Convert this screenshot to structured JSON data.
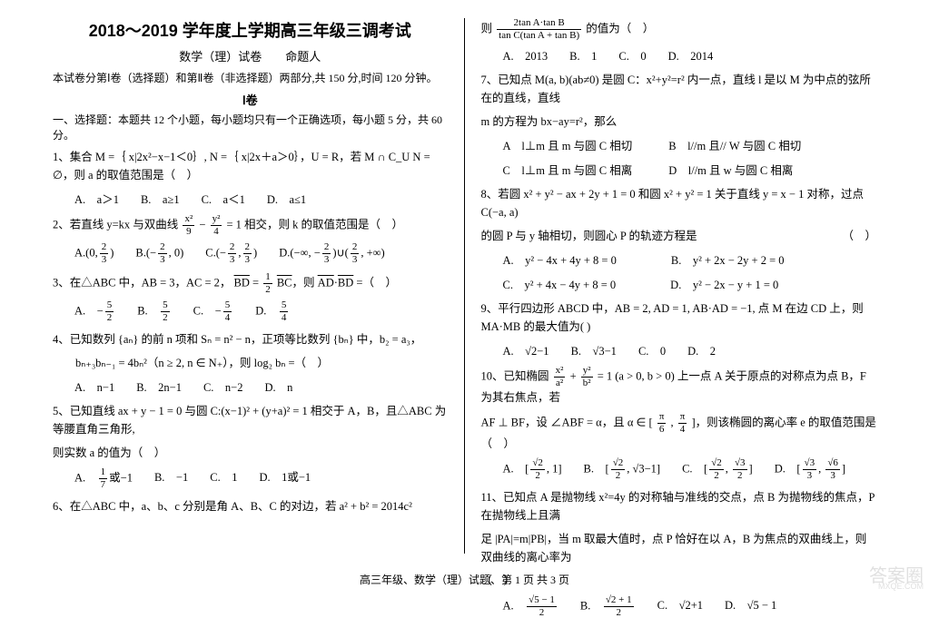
{
  "header": {
    "title": "2018～2019 学年度上学期高三年级三调考试",
    "subtitle_left": "数学（理）试卷",
    "subtitle_right": "命题人",
    "intro": "本试卷分第Ⅰ卷（选择题）和第Ⅱ卷（非选择题）两部分,共 150 分,时间 120 分钟。",
    "section1_label": "Ⅰ卷",
    "section1_desc": "一、选择题：本题共 12 个小题，每小题均只有一个正确选项，每小题 5 分，共 60 分。"
  },
  "left": {
    "q1": "1、集合 M =｛ x|2x²−x−1＜0｝, N =｛ x|2x＋a＞0｝，U = R，若 M ∩ C_U N = ∅，则 a 的取值范围是（　）",
    "q1_opts": {
      "a": "A.　a＞1",
      "b": "B.　a≥1",
      "c": "C.　a＜1",
      "d": "D.　a≤1"
    },
    "q2_pre": "2、若直线 y=kx 与双曲线",
    "q2_frac_l_num": "x²",
    "q2_frac_l_den": "9",
    "q2_frac_r_num": "y²",
    "q2_frac_r_den": "4",
    "q2_post": "= 1 相交，则 k 的取值范围是（　）",
    "q2_optA_pre": "A.",
    "q2_optA_l": "0,",
    "q2_optA_r_num": "2",
    "q2_optA_r_den": "3",
    "q2_optB_pre": "B.",
    "q2_optB_l_num": "2",
    "q2_optB_l_den": "3",
    "q2_optB_r": ", 0",
    "q2_optC_pre": "C.",
    "q2_optC_l_num": "2",
    "q2_optC_l_den": "3",
    "q2_optC_m": ",",
    "q2_optC_r_num": "2",
    "q2_optC_r_den": "3",
    "q2_optD_pre": "D.",
    "q2_optD_l": "−∞, −",
    "q2_optD_m_num": "2",
    "q2_optD_m_den": "3",
    "q2_optD_mid": "∪",
    "q2_optD_r_num": "2",
    "q2_optD_r_den": "3",
    "q2_optD_end": ", +∞",
    "q3_pre": "3、在△ABC 中，AB = 3，AC = 2，",
    "q3_bd": "BD",
    "q3_eq": " = ",
    "q3_half_num": "1",
    "q3_half_den": "2",
    "q3_bc": "BC",
    "q3_post": "，则",
    "q3_ad": "AD",
    "q3_dot": "·",
    "q3_bd2": "BD",
    "q3_end": " =（　）",
    "q3_opts": {
      "a_pre": "A.　−",
      "a_num": "5",
      "a_den": "2",
      "b_pre": "B.　",
      "b_num": "5",
      "b_den": "2",
      "c_pre": "C.　−",
      "c_num": "5",
      "c_den": "4",
      "d_pre": "D.　",
      "d_num": "5",
      "d_den": "4"
    },
    "q4_line1": "4、已知数列 {aₙ} 的前 n 项和 Sₙ = n² − n，正项等比数列 {bₙ} 中，b₂ = a₃，",
    "q4_line2": "　　bₙ₊₃bₙ₋₁ = 4bₙ²（n ≥ 2, n ∈ N₊），则 log₂ bₙ =（　）",
    "q4_opts": {
      "a": "A.　n−1",
      "b": "B.　2n−1",
      "c": "C.　n−2",
      "d": "D.　n"
    },
    "q5_line1": "5、已知直线 ax + y − 1 = 0 与圆 C:(x−1)² + (y+a)² = 1 相交于 A，B，且△ABC 为等腰直角三角形,",
    "q5_line2": "则实数 a 的值为（　）",
    "q5_opts": {
      "a_pre": "A.　",
      "a_num": "1",
      "a_den": "7",
      "a_post": "或−1",
      "b": "B.　−1",
      "c": "C.　1",
      "d": "D.　1或−1"
    },
    "q6": "6、在△ABC 中，a、b、c 分别是角 A、B、C 的对边，若 a² + b² = 2014c²"
  },
  "right": {
    "q6b_pre": "则",
    "q6b_top": "2tan A·tan B",
    "q6b_bot": "tan C(tan A + tan B)",
    "q6b_post": "的值为（　）",
    "q6b_opts": {
      "a": "A.　2013",
      "b": "B.　1",
      "c": "C.　0",
      "d": "D.　2014"
    },
    "q7_l1": "7、已知点 M(a, b)(ab≠0) 是圆 C：x²+y²=r² 内一点，直线 l 是以 M 为中点的弦所在的直线，直线",
    "q7_l2": "m 的方程为 bx−ay=r²，那么",
    "q7_opts": {
      "a": "A　l⊥m 且 m 与圆 C 相切",
      "b": "B　l//m 且// W 与圆 C 相切",
      "c": "C　l⊥m 且 m 与圆 C 相离",
      "d": "D　l//m 且 w 与圆 C 相离"
    },
    "q8_l1": "8、若圆 x² + y² − ax + 2y + 1 = 0 和圆 x² + y² = 1 关于直线 y = x − 1 对称，过点 C(−a, a)",
    "q8_l2": "的圆 P 与 y 轴相切，则圆心 P 的轨迹方程是",
    "q8_paren": "（　）",
    "q8_opts": {
      "a": "A.　y² − 4x + 4y + 8 = 0",
      "b": "B.　y² + 2x − 2y + 2 = 0",
      "c": "C.　y² + 4x − 4y + 8 = 0",
      "d": "D.　y² − 2x − y + 1 = 0"
    },
    "q9": "9、平行四边形 ABCD 中，AB = 2, AD = 1, AB·AD = −1, 点 M 在边 CD 上，则 MA·MB 的最大值为( )",
    "q9_opts": {
      "a": "A.　√2−1",
      "b": "B.　√3−1",
      "c": "C.　0",
      "d": "D.　2"
    },
    "q10_pre": "10、已知椭圆",
    "q10_fl_num": "x²",
    "q10_fl_den": "a²",
    "q10_plus": " + ",
    "q10_fr_num": "y²",
    "q10_fr_den": "b²",
    "q10_post": " = 1 (a > 0, b > 0) 上一点 A 关于原点的对称点为点 B，F 为其右焦点，若",
    "q10_l2_pre": "AF ⊥ BF，设 ∠ABF = α，且 α ∈ [",
    "q10_l2_f1_num": "π",
    "q10_l2_f1_den": "6",
    "q10_l2_comma": ", ",
    "q10_l2_f2_num": "π",
    "q10_l2_f2_den": "4",
    "q10_l2_post": "]，则该椭圆的离心率 e 的取值范围是（　）",
    "q10_opts": {
      "a_pre": "A.　[",
      "a_num": "√2",
      "a_den": "2",
      "a_post": ", 1]",
      "b_pre": "B.　[",
      "b_num": "√2",
      "b_den": "2",
      "b_post": ", √3−1]",
      "c_pre": "C.　[",
      "c_l_num": "√2",
      "c_l_den": "2",
      "c_mid": ", ",
      "c_r_num": "√3",
      "c_r_den": "2",
      "c_post": "]",
      "d_pre": "D.　[",
      "d_l_num": "√3",
      "d_l_den": "3",
      "d_mid": ", ",
      "d_r_num": "√6",
      "d_r_den": "3",
      "d_post": "]"
    },
    "q11_l1": "11、已知点 A 是抛物线 x²=4y 的对称轴与准线的交点，点 B 为抛物线的焦点，P 在抛物线上且满",
    "q11_l2": "足 |PA|=m|PB|，当 m 取最大值时，点 P 恰好在以 A，B 为焦点的双曲线上，则双曲线的离心率为",
    "q11_paren": "（　）",
    "q11_opts": {
      "a_pre": "A.　",
      "a_num": "√5 − 1",
      "a_den": "2",
      "b_pre": "B.　",
      "b_num": "√2 + 1",
      "b_den": "2",
      "c": "C.　√2+1",
      "d": "D.　√5 − 1"
    }
  },
  "footer": "高三年级、数学（理）试题、第 1 页 共 3 页",
  "watermark": "答案圈",
  "watermark_url": "MXQE.COM"
}
